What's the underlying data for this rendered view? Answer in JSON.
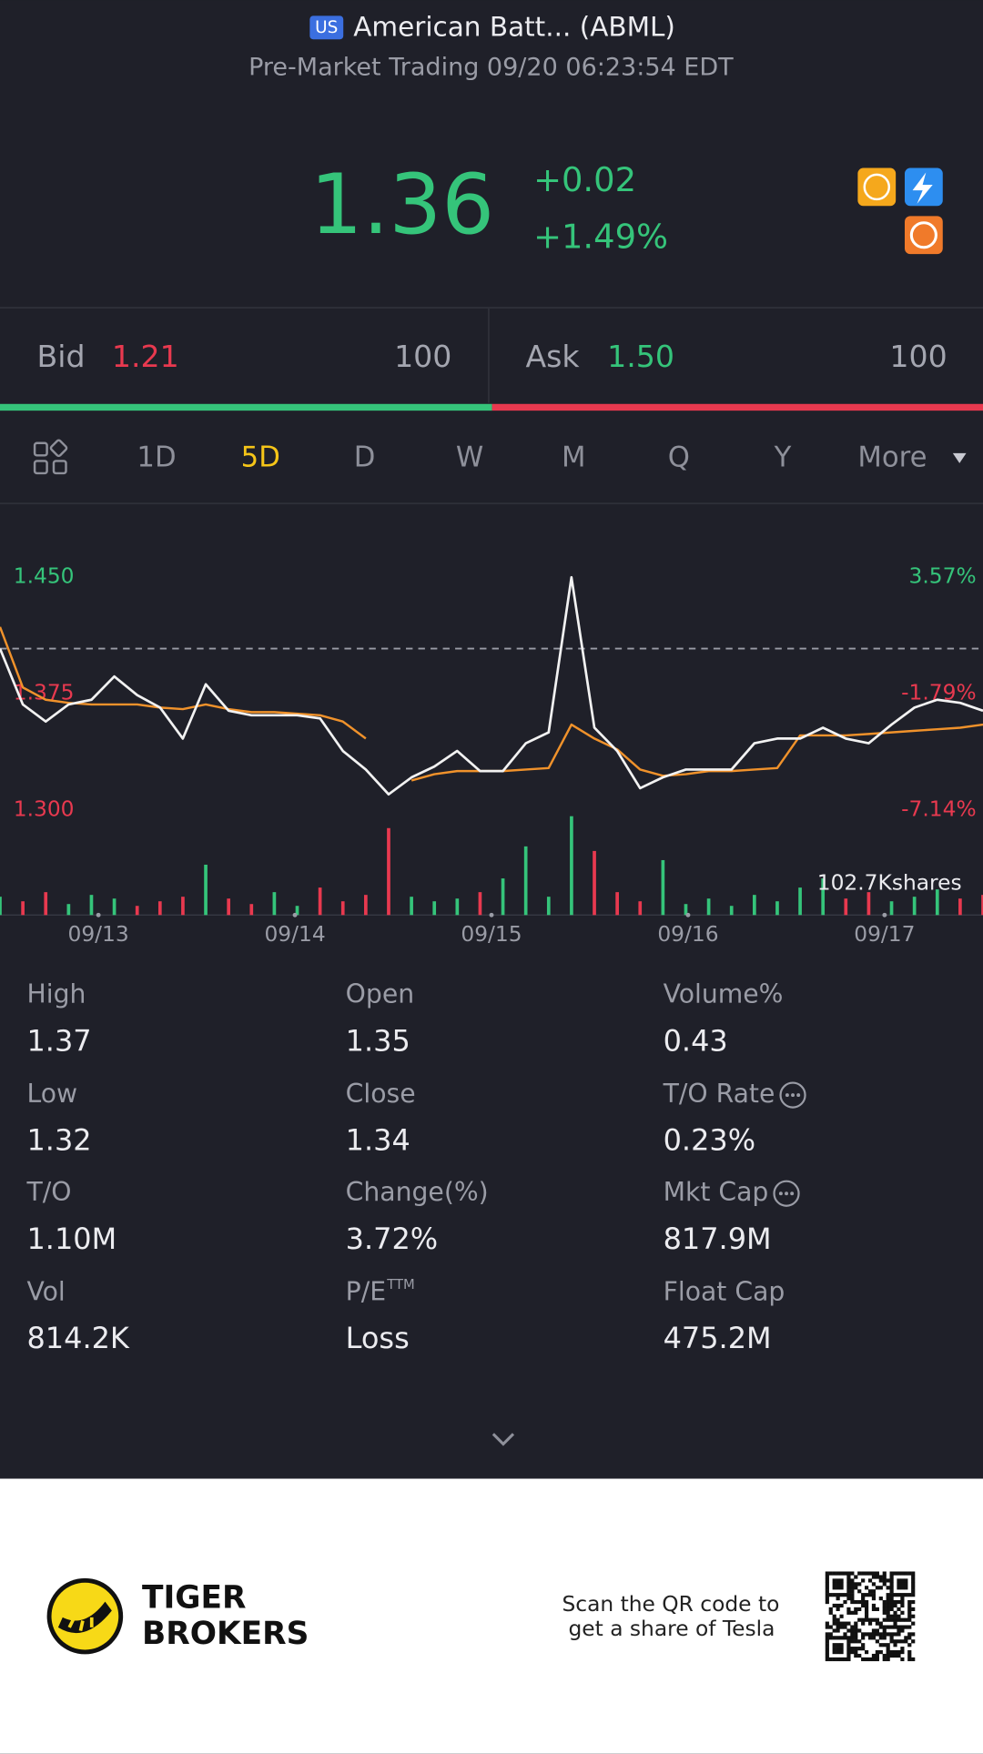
{
  "header": {
    "badge": "US",
    "title": "American Batt... (ABML)",
    "subtitle": "Pre-Market Trading 09/20 06:23:54 EDT"
  },
  "quote": {
    "price": "1.36",
    "change": "+0.02",
    "change_pct": "+1.49%"
  },
  "bidask": {
    "bid_label": "Bid",
    "bid": "1.21",
    "bid_size": "100",
    "ask_label": "Ask",
    "ask": "1.50",
    "ask_size": "100"
  },
  "tabs": {
    "items": [
      "1D",
      "5D",
      "D",
      "W",
      "M",
      "Q",
      "Y",
      "More"
    ],
    "active": "5D"
  },
  "chart": {
    "type": "line",
    "ylim": [
      1.3,
      1.45
    ],
    "yticks": [
      {
        "value": 1.45,
        "label": "1.450"
      },
      {
        "value": 1.375,
        "label": "1.375"
      },
      {
        "value": 1.3,
        "label": "1.300"
      }
    ],
    "y2lim": [
      -7.14,
      3.57
    ],
    "y2ticks": [
      {
        "value": 3.57,
        "label": "3.57%"
      },
      {
        "value": -1.79,
        "label": "-1.79%"
      },
      {
        "value": -7.14,
        "label": "-7.14%"
      }
    ],
    "reference": 1.404,
    "dates": [
      "09/13",
      "09/14",
      "09/15",
      "09/16",
      "09/17"
    ],
    "series": [
      {
        "name": "Price",
        "color": "#f2f2f2",
        "values": [
          1.404,
          1.368,
          1.357,
          1.368,
          1.371,
          1.386,
          1.374,
          1.366,
          1.346,
          1.381,
          1.364,
          1.361,
          1.361,
          1.361,
          1.359,
          1.338,
          1.326,
          1.31,
          1.321,
          1.328,
          1.338,
          1.325,
          1.325,
          1.343,
          1.35,
          1.45,
          1.353,
          1.338,
          1.314,
          1.321,
          1.326,
          1.326,
          1.326,
          1.343,
          1.346,
          1.346,
          1.353,
          1.346,
          1.343,
          1.355,
          1.366,
          1.371,
          1.369,
          1.364
        ]
      },
      {
        "name": "Average",
        "color": "#f0922b",
        "values": [
          1.418,
          1.379,
          1.371,
          1.369,
          1.368,
          1.368,
          1.368,
          1.366,
          1.365,
          1.368,
          1.365,
          1.363,
          1.363,
          1.362,
          1.361,
          1.357,
          1.346,
          null,
          1.319,
          1.323,
          1.325,
          1.325,
          1.325,
          1.326,
          1.327,
          1.355,
          1.346,
          1.339,
          1.326,
          1.322,
          1.323,
          1.325,
          1.325,
          1.326,
          1.327,
          1.348,
          1.348,
          1.348,
          1.349,
          1.35,
          1.351,
          1.352,
          1.353,
          1.355
        ]
      }
    ],
    "volume": {
      "label": "102.7Kshares",
      "ylim": [
        0,
        110
      ],
      "values": [
        20,
        15,
        25,
        12,
        22,
        18,
        10,
        15,
        20,
        55,
        18,
        12,
        25,
        10,
        30,
        15,
        22,
        95,
        20,
        15,
        18,
        25,
        40,
        75,
        20,
        108,
        70,
        25,
        15,
        60,
        12,
        18,
        10,
        22,
        15,
        30,
        40,
        18,
        25,
        15,
        20,
        28,
        18,
        22
      ]
    }
  },
  "stats": [
    {
      "label": "High",
      "value": "1.37"
    },
    {
      "label": "Open",
      "value": "1.35"
    },
    {
      "label": "Volume%",
      "value": "0.43"
    },
    {
      "label": "Low",
      "value": "1.32"
    },
    {
      "label": "Close",
      "value": "1.34"
    },
    {
      "label": "T/O Rate",
      "value": "0.23%"
    },
    {
      "label": "T/O",
      "value": "1.10M"
    },
    {
      "label": "Change(%)",
      "value": "3.72%"
    },
    {
      "label": "Mkt Cap",
      "value": "817.9M"
    },
    {
      "label": "Vol",
      "value": "814.2K"
    },
    {
      "label": "P/E",
      "sup": "TTM",
      "value": "Loss"
    },
    {
      "label": "Float Cap",
      "value": "475.2M"
    }
  ],
  "footer": {
    "brand_line1": "TIGER",
    "brand_line2": "BROKERS",
    "promo_line1": "Scan the QR code to",
    "promo_line2": "get a share of Tesla"
  }
}
